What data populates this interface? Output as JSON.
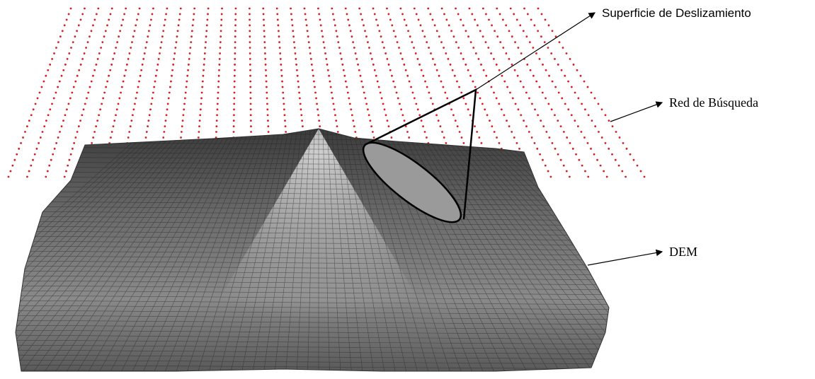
{
  "labels": {
    "slip_surface": "Superficie de Deslizamiento",
    "search_grid": "Red de Búsqueda",
    "dem": "DEM"
  }
}
